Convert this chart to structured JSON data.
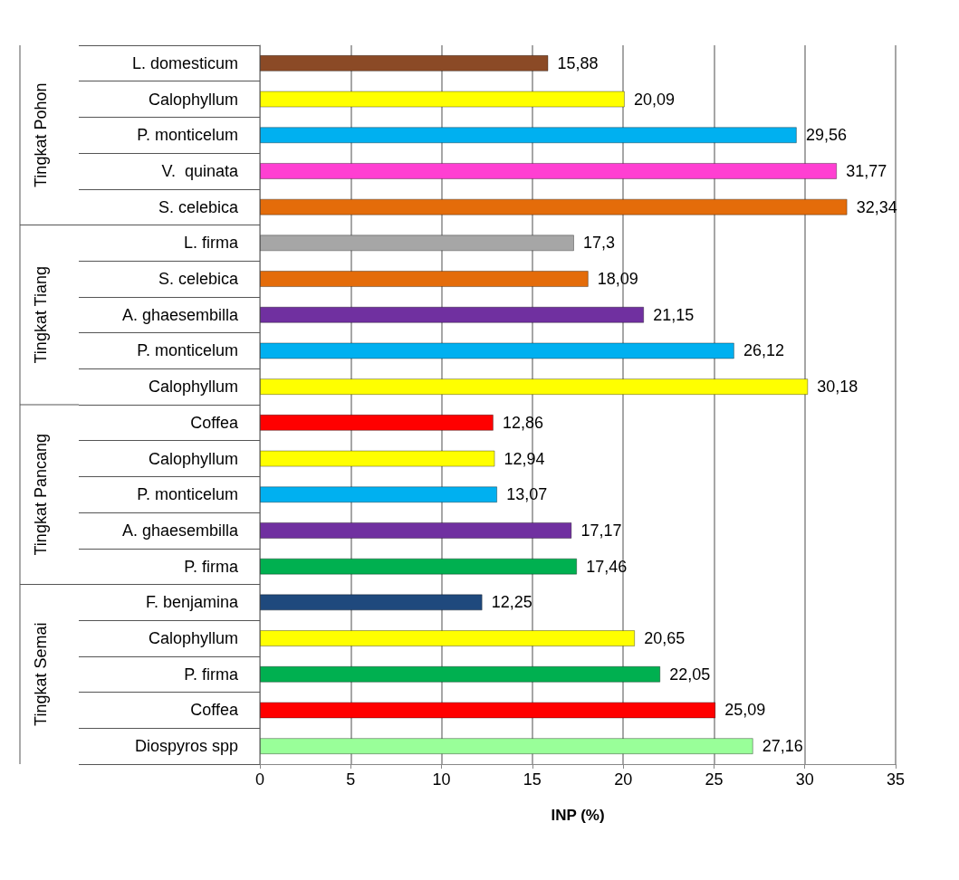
{
  "chart_data": {
    "type": "bar",
    "orientation": "horizontal",
    "xlabel": "INP (%)",
    "categories": [
      "L. domesticum",
      "Calophyllum",
      "P. monticelum",
      "V.  quinata",
      "S. celebica",
      "L. firma",
      "S. celebica",
      "A. ghaesembilla",
      "P. monticelum",
      "Calophyllum",
      "Coffea",
      "Calophyllum",
      "P. monticelum",
      "A. ghaesembilla",
      "P. firma",
      "F. benjamina",
      "Calophyllum",
      "P. firma",
      "Coffea",
      "Diospyros spp"
    ],
    "values": [
      15.88,
      20.09,
      29.56,
      31.77,
      32.34,
      17.3,
      18.09,
      21.15,
      26.12,
      30.18,
      12.86,
      12.94,
      13.07,
      17.17,
      17.46,
      12.25,
      20.65,
      22.05,
      25.09,
      27.16
    ],
    "value_labels": [
      "15,88",
      "20,09",
      "29,56",
      "31,77",
      "32,34",
      "17,3",
      "18,09",
      "21,15",
      "26,12",
      "30,18",
      "12,86",
      "12,94",
      "13,07",
      "17,17",
      "17,46",
      "12,25",
      "20,65",
      "22,05",
      "25,09",
      "27,16"
    ],
    "colors": [
      "#8b4a26",
      "#ffff00",
      "#00b0f0",
      "#ff3fd2",
      "#e46c0a",
      "#a6a6a6",
      "#e46c0a",
      "#7030a0",
      "#00b0f0",
      "#ffff00",
      "#ff0000",
      "#ffff00",
      "#00b0f0",
      "#7030a0",
      "#00b050",
      "#1f497d",
      "#ffff00",
      "#00b050",
      "#ff0000",
      "#99ff99"
    ],
    "annotations": [
      "Tingkat Pohon",
      "Tingkat Tiang",
      "Tingkat Pancang",
      "Tingkat Semai"
    ],
    "xlim": [
      0,
      35
    ],
    "xticks": [
      0,
      5,
      10,
      15,
      20,
      25,
      30,
      35
    ],
    "grid": "x"
  }
}
